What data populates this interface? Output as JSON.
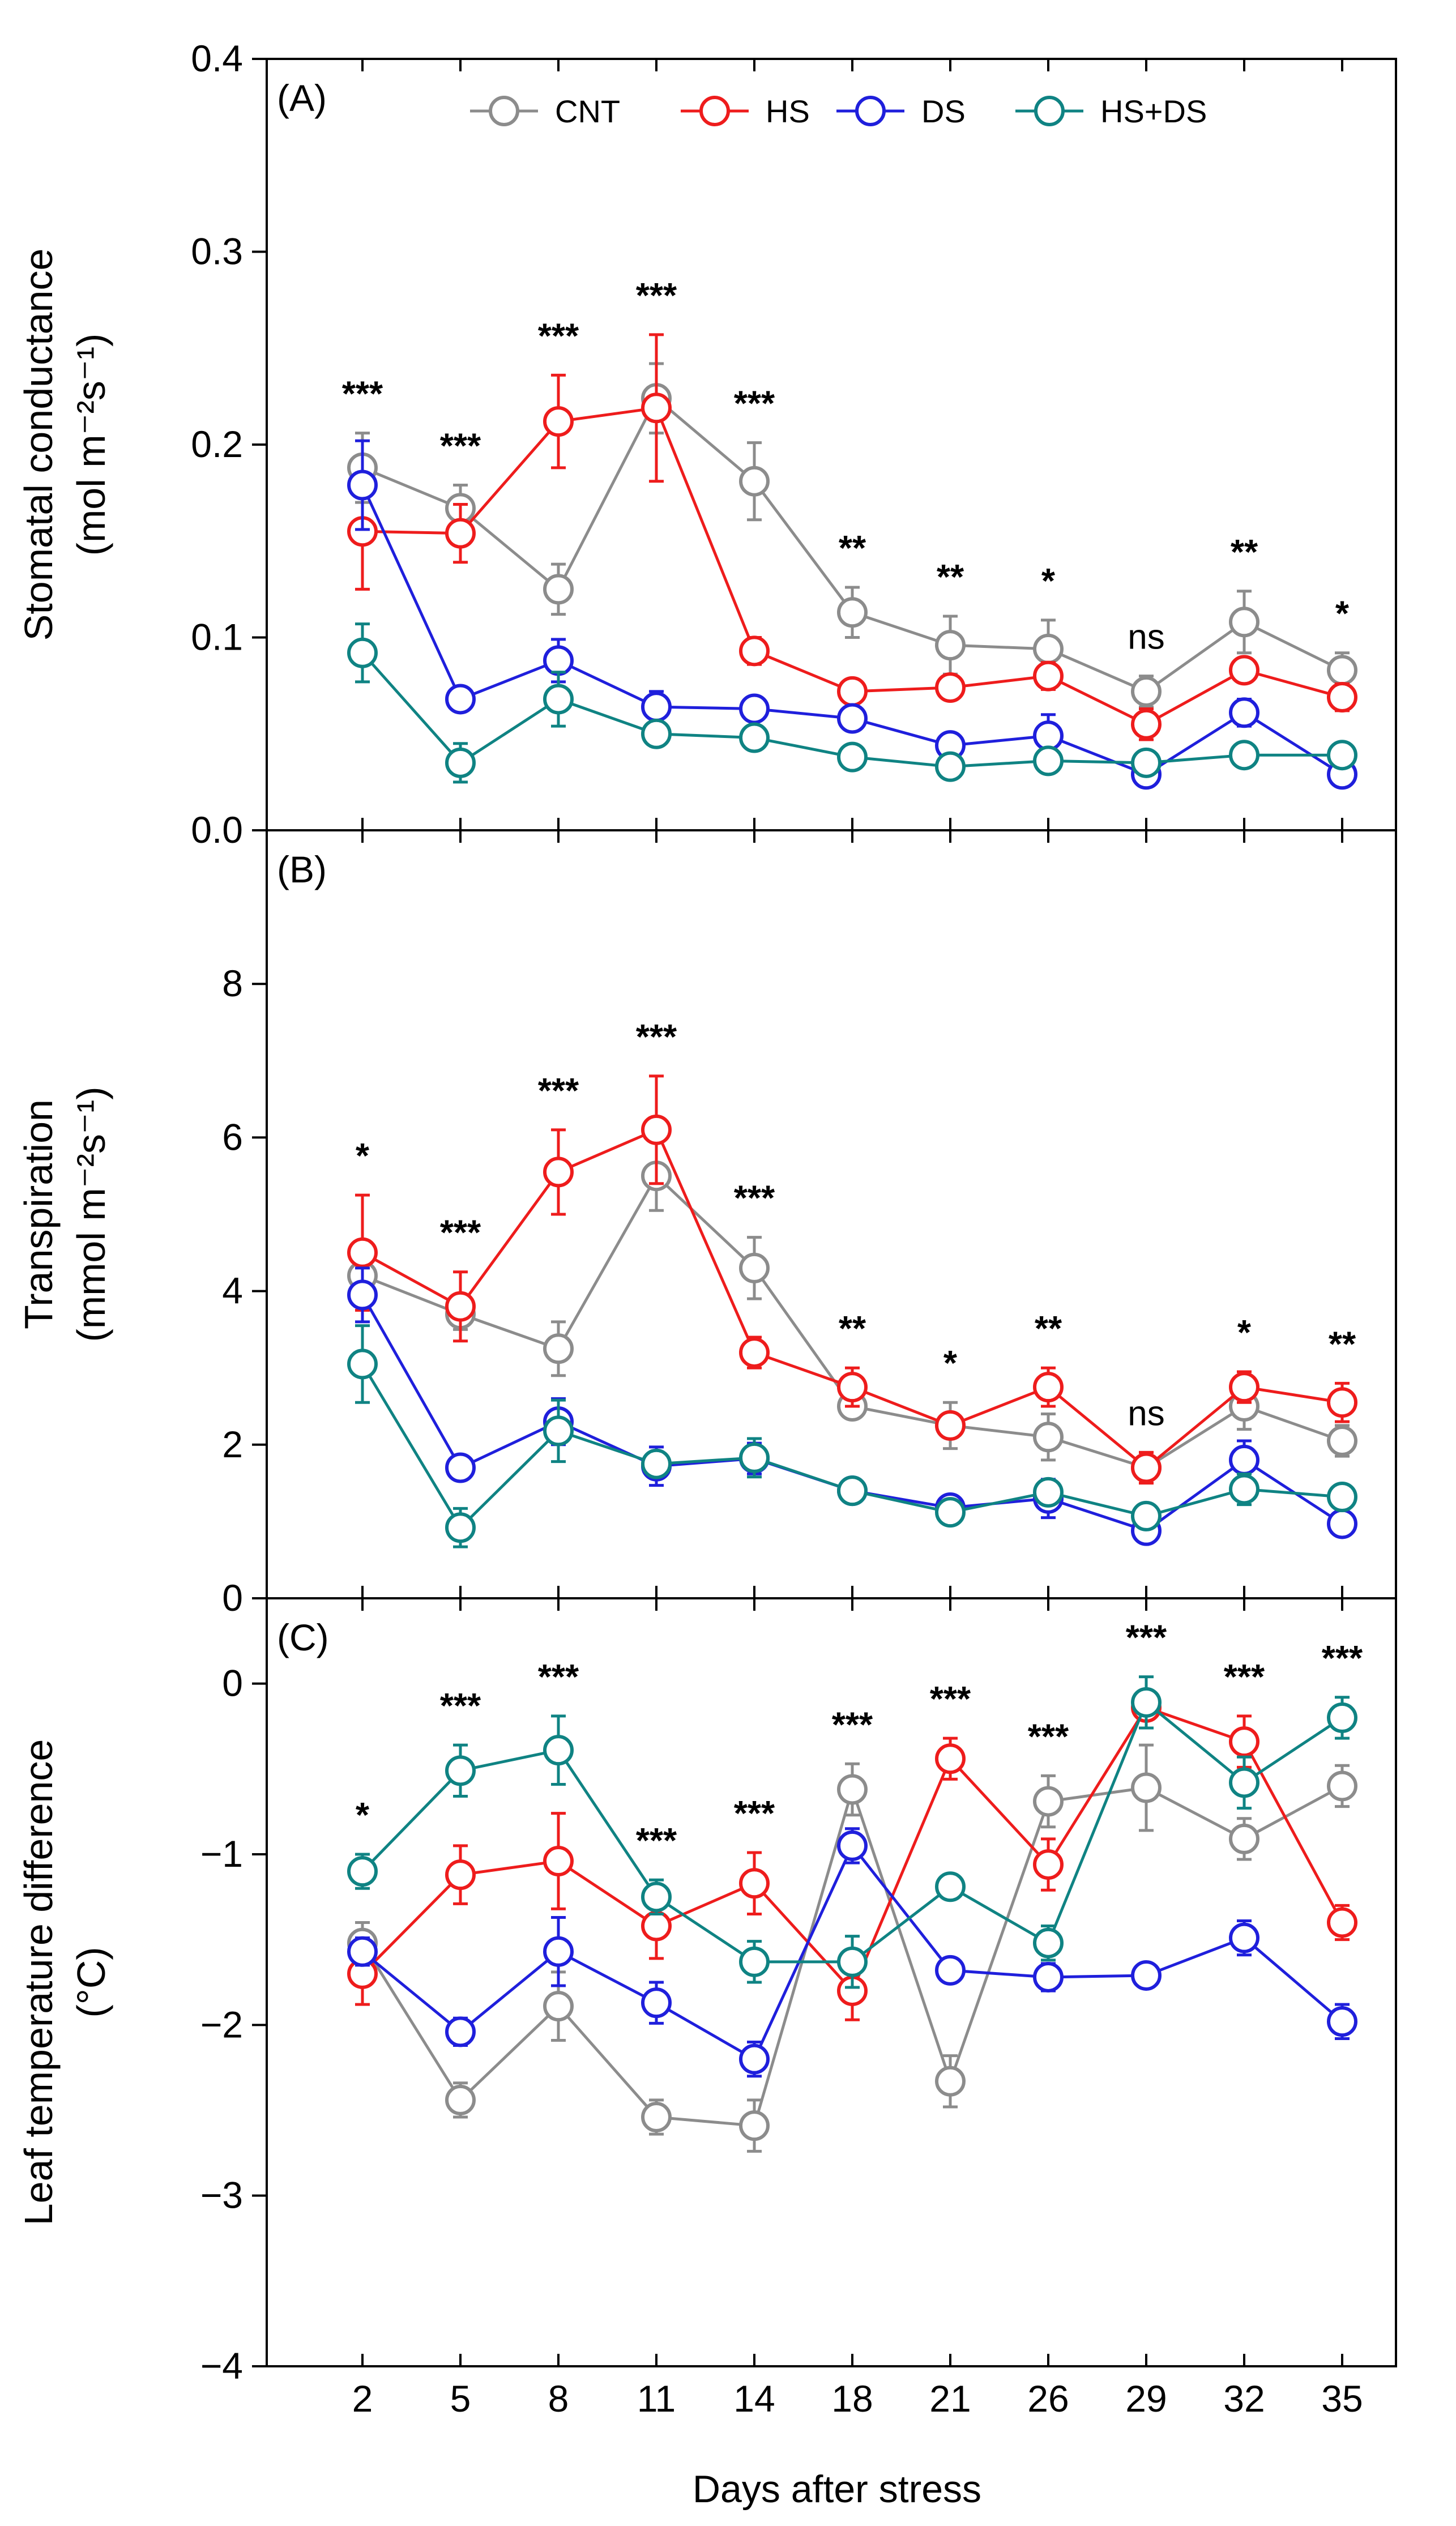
{
  "x_title": "Days after stress",
  "x_categories": [
    "2",
    "5",
    "8",
    "11",
    "14",
    "18",
    "21",
    "26",
    "29",
    "32",
    "35"
  ],
  "legend": [
    {
      "name": "CNT",
      "color": "#8c8c8c"
    },
    {
      "name": "HS",
      "color": "#ee1c1c"
    },
    {
      "name": "DS",
      "color": "#1f1fdc"
    },
    {
      "name": "HS+DS",
      "color": "#0f8383"
    }
  ],
  "colors": {
    "CNT": "#8c8c8c",
    "HS": "#ee1c1c",
    "DS": "#1f1fdc",
    "HSDS": "#0f8383"
  },
  "chart_data": [
    {
      "type": "line",
      "panel_label": "(A)",
      "ylabel_line1": "Stomatal conductance",
      "ylabel_line2": "(mol m⁻²s⁻¹)",
      "ylim": [
        0,
        0.4
      ],
      "yticks": [
        0,
        0.1,
        0.2,
        0.3,
        0.4
      ],
      "ytick_labels": [
        "0.0",
        "0.1",
        "0.2",
        "0.3",
        "0.4"
      ],
      "significance": [
        "***",
        "***",
        "***",
        "***",
        "***",
        "**",
        "**",
        "*",
        "ns",
        "**",
        "*"
      ],
      "series": [
        {
          "name": "CNT",
          "values": [
            0.188,
            0.167,
            0.125,
            0.224,
            0.181,
            0.113,
            0.096,
            0.094,
            0.072,
            0.108,
            0.083
          ],
          "errors": [
            0.018,
            0.012,
            0.013,
            0.018,
            0.02,
            0.013,
            0.015,
            0.015,
            0.008,
            0.016,
            0.009
          ]
        },
        {
          "name": "HS",
          "values": [
            0.155,
            0.154,
            0.212,
            0.219,
            0.093,
            0.072,
            0.074,
            0.08,
            0.055,
            0.083,
            0.069
          ],
          "errors": [
            0.03,
            0.015,
            0.024,
            0.038,
            0.007,
            0.004,
            0.005,
            0.007,
            0.008,
            0.006,
            0.007
          ]
        },
        {
          "name": "DS",
          "values": [
            0.179,
            0.068,
            0.088,
            0.064,
            0.063,
            0.058,
            0.044,
            0.049,
            0.029,
            0.061,
            0.029
          ],
          "errors": [
            0.023,
            0.006,
            0.011,
            0.008,
            0.006,
            0.005,
            0.004,
            0.011,
            0.003,
            0.007,
            0.003
          ]
        },
        {
          "name": "HS+DS",
          "values": [
            0.092,
            0.035,
            0.068,
            0.05,
            0.048,
            0.038,
            0.033,
            0.036,
            0.035,
            0.039,
            0.039
          ],
          "errors": [
            0.015,
            0.01,
            0.014,
            0.004,
            0.006,
            0.004,
            0.003,
            0.003,
            0.003,
            0.003,
            0.003
          ]
        }
      ]
    },
    {
      "type": "line",
      "panel_label": "(B)",
      "ylabel_line1": "Transpiration",
      "ylabel_line2": "(mmol m⁻²s⁻¹)",
      "ylim": [
        0,
        10
      ],
      "yticks": [
        0,
        2,
        4,
        6,
        8
      ],
      "ytick_labels": [
        "0",
        "2",
        "4",
        "6",
        "8"
      ],
      "significance": [
        "*",
        "***",
        "***",
        "***",
        "***",
        "**",
        "*",
        "**",
        "ns",
        "*",
        "**"
      ],
      "series": [
        {
          "name": "CNT",
          "values": [
            4.2,
            3.7,
            3.25,
            5.5,
            4.3,
            2.5,
            2.25,
            2.1,
            1.7,
            2.5,
            2.05
          ],
          "errors": [
            0.3,
            0.2,
            0.35,
            0.45,
            0.4,
            0.15,
            0.3,
            0.3,
            0.2,
            0.3,
            0.2
          ]
        },
        {
          "name": "HS",
          "values": [
            4.5,
            3.8,
            5.55,
            6.1,
            3.2,
            2.75,
            2.25,
            2.75,
            1.7,
            2.75,
            2.55
          ],
          "errors": [
            0.75,
            0.45,
            0.55,
            0.7,
            0.2,
            0.25,
            0.1,
            0.25,
            0.2,
            0.2,
            0.25
          ]
        },
        {
          "name": "DS",
          "values": [
            3.95,
            1.7,
            2.3,
            1.72,
            1.82,
            1.4,
            1.18,
            1.3,
            0.88,
            1.8,
            0.97
          ],
          "errors": [
            0.35,
            0.15,
            0.3,
            0.25,
            0.2,
            0.1,
            0.1,
            0.25,
            0.1,
            0.25,
            0.1
          ]
        },
        {
          "name": "HS+DS",
          "values": [
            3.05,
            0.92,
            2.18,
            1.75,
            1.83,
            1.4,
            1.12,
            1.38,
            1.07,
            1.42,
            1.32
          ],
          "errors": [
            0.5,
            0.25,
            0.4,
            0.15,
            0.25,
            0.1,
            0.1,
            0.15,
            0.1,
            0.2,
            0.12
          ]
        }
      ]
    },
    {
      "type": "line",
      "panel_label": "(C)",
      "ylabel_line1": "Leaf temperature difference",
      "ylabel_line2": "(°C)",
      "ylim": [
        -4,
        0.5
      ],
      "yticks": [
        -4,
        -3,
        -2,
        -1,
        0
      ],
      "ytick_labels": [
        "−4",
        "−3",
        "−2",
        "−1",
        "0"
      ],
      "significance": [
        "*",
        "***",
        "***",
        "***",
        "***",
        "***",
        "***",
        "***",
        "***",
        "***",
        "***"
      ],
      "series": [
        {
          "name": "CNT",
          "values": [
            -1.52,
            -2.44,
            -1.89,
            -2.54,
            -2.59,
            -0.62,
            -2.33,
            -0.69,
            -0.61,
            -0.91,
            -0.6
          ],
          "errors": [
            0.12,
            0.1,
            0.2,
            0.1,
            0.15,
            0.15,
            0.15,
            0.15,
            0.25,
            0.12,
            0.12
          ]
        },
        {
          "name": "HS",
          "values": [
            -1.7,
            -1.12,
            -1.04,
            -1.42,
            -1.17,
            -1.8,
            -0.44,
            -1.06,
            -0.14,
            -0.34,
            -1.4
          ],
          "errors": [
            0.18,
            0.17,
            0.28,
            0.19,
            0.18,
            0.17,
            0.12,
            0.15,
            0.07,
            0.15,
            0.1
          ]
        },
        {
          "name": "DS",
          "values": [
            -1.57,
            -2.04,
            -1.57,
            -1.87,
            -2.2,
            -0.95,
            -1.68,
            -1.72,
            -1.71,
            -1.49,
            -1.98
          ],
          "errors": [
            0.08,
            0.08,
            0.2,
            0.12,
            0.1,
            0.1,
            0.05,
            0.08,
            0.05,
            0.1,
            0.1
          ]
        },
        {
          "name": "HS+DS",
          "values": [
            -1.1,
            -0.51,
            -0.39,
            -1.25,
            -1.63,
            -1.63,
            -1.19,
            -1.52,
            -0.11,
            -0.58,
            -0.2
          ],
          "errors": [
            0.1,
            0.15,
            0.2,
            0.1,
            0.12,
            0.15,
            0.06,
            0.1,
            0.15,
            0.15,
            0.12
          ]
        }
      ]
    }
  ]
}
